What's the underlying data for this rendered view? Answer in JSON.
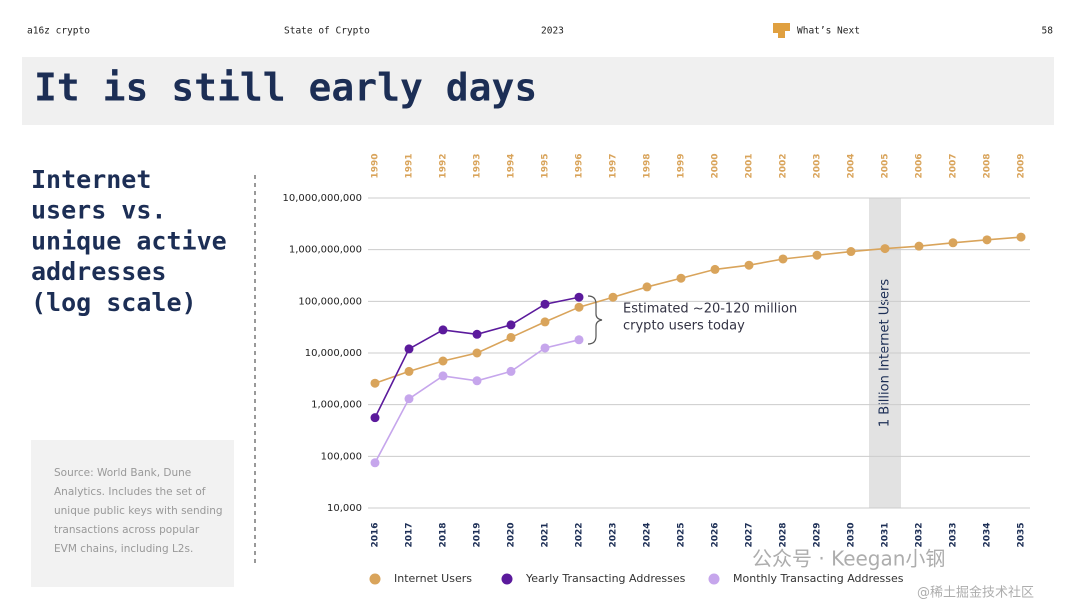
{
  "header": {
    "left": "a16z crypto",
    "center": "State of Crypto",
    "year": "2023",
    "section": "What’s Next",
    "page": "58"
  },
  "title": "It is still early days",
  "side_heading": [
    "Internet",
    "users vs.",
    "unique active",
    "addresses",
    "(log scale)"
  ],
  "source": [
    "Source: World Bank, Dune",
    "Analytics. Includes the set of",
    "unique public keys with sending",
    "transactions across popular",
    "EVM chains, including L2s."
  ],
  "watermark": [
    "公众号 · Keegan小钢",
    "@稀土掘金技术社区"
  ],
  "chart_data": {
    "type": "line",
    "log_scale": true,
    "grid": true,
    "categories": [
      "2016",
      "2017",
      "2018",
      "2019",
      "2020",
      "2021",
      "2022",
      "2023",
      "2024",
      "2025",
      "2026",
      "2027",
      "2028",
      "2029",
      "2030",
      "2031",
      "2032",
      "2033",
      "2034",
      "2035"
    ],
    "top_categories": [
      "1990",
      "1991",
      "1992",
      "1993",
      "1994",
      "1995",
      "1996",
      "1997",
      "1998",
      "1999",
      "2000",
      "2001",
      "2002",
      "2003",
      "2004",
      "2005",
      "2006",
      "2007",
      "2008",
      "2009"
    ],
    "series": [
      {
        "name": "Internet Users",
        "color": "#d9a45b",
        "values": [
          2600000,
          4400000,
          7000000,
          10000000,
          20000000,
          40000000,
          77000000,
          120000000,
          190000000,
          280000000,
          415000000,
          500000000,
          660000000,
          780000000,
          920000000,
          1050000000,
          1170000000,
          1360000000,
          1550000000,
          1750000000
        ]
      },
      {
        "name": "Yearly Transacting Addresses",
        "color": "#5b1a9c",
        "values": [
          560000,
          12000000,
          28000000,
          23000000,
          35000000,
          88000000,
          120000000,
          null,
          null,
          null,
          null,
          null,
          null,
          null,
          null,
          null,
          null,
          null,
          null,
          null
        ]
      },
      {
        "name": "Monthly Transacting Addresses",
        "color": "#c6a6ec",
        "values": [
          75000,
          1300000,
          3600000,
          2900000,
          4400000,
          12500000,
          18000000,
          null,
          null,
          null,
          null,
          null,
          null,
          null,
          null,
          null,
          null,
          null,
          null,
          null
        ]
      }
    ],
    "ylim": [
      10000,
      10000000000
    ],
    "yticks": [
      {
        "value": 10000,
        "label": "10,000"
      },
      {
        "value": 100000,
        "label": "100,000"
      },
      {
        "value": 1000000,
        "label": "1,000,000"
      },
      {
        "value": 10000000,
        "label": "10,000,000"
      },
      {
        "value": 100000000,
        "label": "100,000,000"
      },
      {
        "value": 1000000000,
        "label": "1,000,000,000"
      },
      {
        "value": 10000000000,
        "label": "10,000,000,000"
      }
    ],
    "annotation": [
      "Estimated ~20-120 million",
      "crypto users today"
    ],
    "band": {
      "at": "2031",
      "label": "1 Billion Internet Users"
    }
  }
}
